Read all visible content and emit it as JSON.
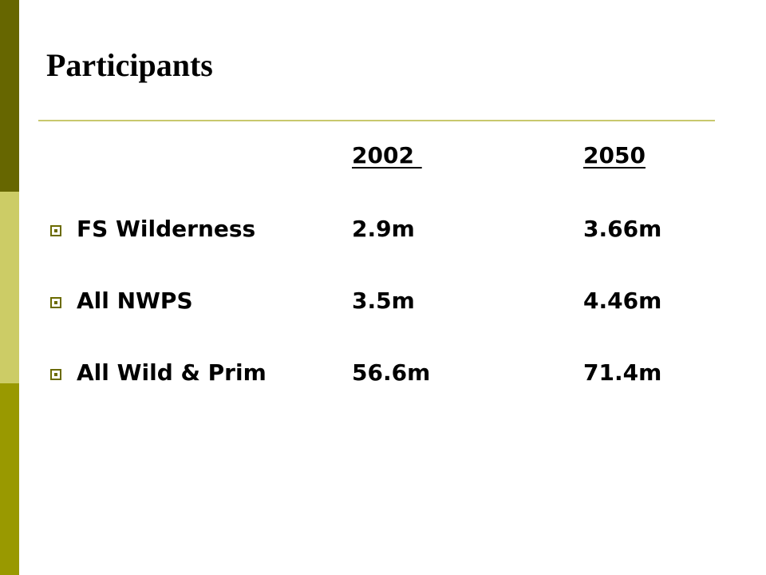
{
  "slide": {
    "title": "Participants",
    "colors": {
      "sidebar_top": "#666600",
      "sidebar_middle": "#cccc66",
      "sidebar_bottom": "#999900",
      "rule": "#c8c86e",
      "bullet": "#6b6b00"
    }
  },
  "table": {
    "headers": [
      "2002 ",
      "2050"
    ],
    "rows": [
      {
        "label": "FS Wilderness",
        "v2002": "2.9m",
        "v2050": "3.66m"
      },
      {
        "label": "All NWPS",
        "v2002": "3.5m",
        "v2050": "4.46m"
      },
      {
        "label": "All Wild & Prim",
        "v2002": "56.6m",
        "v2050": "71.4m"
      }
    ]
  }
}
